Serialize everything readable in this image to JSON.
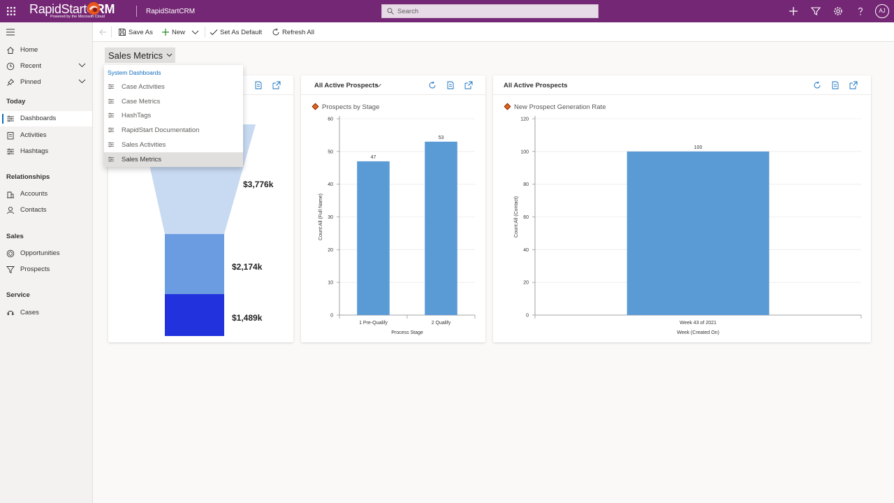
{
  "topbar": {
    "brand_name_light": "RapidStart",
    "brand_name_bold": "CRM",
    "brand_sub": "Powered by the Microsoft Cloud",
    "app_name": "RapidStartCRM",
    "search_placeholder": "Search",
    "avatar_initials": "AJ",
    "icons": [
      "waffle-icon",
      "plus-icon",
      "filter-icon",
      "gear-icon",
      "help-icon"
    ]
  },
  "sidebar": {
    "items": [
      {
        "label": "Home",
        "icon": "home-icon"
      },
      {
        "label": "Recent",
        "icon": "clock-icon"
      },
      {
        "label": "Pinned",
        "icon": "pin-icon"
      }
    ],
    "groups": [
      {
        "title": "Today",
        "items": [
          {
            "label": "Dashboards",
            "icon": "dashboard-icon",
            "selected": true
          },
          {
            "label": "Activities",
            "icon": "activities-icon"
          },
          {
            "label": "Hashtags",
            "icon": "hashtag-icon"
          }
        ]
      },
      {
        "title": "Relationships",
        "items": [
          {
            "label": "Accounts",
            "icon": "account-icon"
          },
          {
            "label": "Contacts",
            "icon": "contact-icon"
          }
        ]
      },
      {
        "title": "Sales",
        "items": [
          {
            "label": "Opportunities",
            "icon": "opportunity-icon"
          },
          {
            "label": "Prospects",
            "icon": "funnel-icon"
          }
        ]
      },
      {
        "title": "Service",
        "items": [
          {
            "label": "Cases",
            "icon": "case-icon"
          }
        ]
      }
    ]
  },
  "commandbar": {
    "save_as": "Save As",
    "new": "New",
    "set_default": "Set As Default",
    "refresh_all": "Refresh All"
  },
  "dashboard": {
    "title": "Sales Metrics",
    "dropdown": {
      "header": "System Dashboards",
      "items": [
        "Case Activities",
        "Case Metrics",
        "HashTags",
        "RapidStart Documentation",
        "Sales Activities",
        "Sales Metrics"
      ],
      "selected": "Sales Metrics"
    }
  },
  "cards": [
    {
      "funnel": {
        "values": [
          "$3,776k",
          "$2,174k",
          "$1,489k"
        ],
        "colors": [
          "#c8daf2",
          "#6b9be0",
          "#2233dd"
        ]
      }
    },
    {
      "view_title": "All Active Prospects",
      "chart_title": "Prospects by Stage"
    },
    {
      "view_title": "All Active Prospects",
      "chart_title": "New Prospect Generation Rate"
    }
  ],
  "chart_data": [
    {
      "type": "funnel",
      "values_k": [
        3776,
        2174,
        1489
      ],
      "labels": [
        "$3,776k",
        "$2,174k",
        "$1,489k"
      ]
    },
    {
      "type": "bar",
      "title": "Prospects by Stage",
      "categories": [
        "1 Pre-Qualify",
        "2 Qualify"
      ],
      "values": [
        47,
        53
      ],
      "ylim": [
        0,
        60
      ],
      "yticks": [
        0,
        10,
        20,
        30,
        40,
        50,
        60
      ],
      "xlabel": "Process Stage",
      "ylabel": "Count:All (Full Name)",
      "bar_color": "#5b9bd5",
      "grid": true
    },
    {
      "type": "bar",
      "title": "New Prospect Generation Rate",
      "categories": [
        "Week 43 of 2021"
      ],
      "values": [
        100
      ],
      "ylim": [
        0,
        120
      ],
      "yticks": [
        0,
        20,
        40,
        60,
        80,
        100,
        120
      ],
      "xlabel": "Week (Created On)",
      "ylabel": "Count:All (Contact)",
      "bar_color": "#5b9bd5",
      "grid": true
    }
  ]
}
